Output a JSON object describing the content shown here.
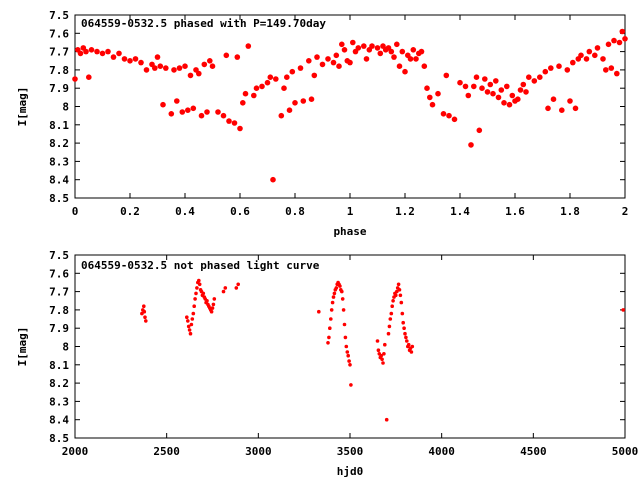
{
  "chart_data": [
    {
      "type": "scatter",
      "title": "064559-0532.5 phased with P=149.70day",
      "xlabel": "phase",
      "ylabel": "I[mag]",
      "xlim": [
        0,
        2
      ],
      "ylim": [
        7.5,
        8.5
      ],
      "y_inverted": true,
      "xticks": [
        "0",
        "0.2",
        "0.4",
        "0.6",
        "0.8",
        "1",
        "1.2",
        "1.4",
        "1.6",
        "1.8",
        "2"
      ],
      "yticks": [
        "7.5",
        "7.6",
        "7.7",
        "7.8",
        "7.9",
        "8",
        "8.1",
        "8.2",
        "8.3",
        "8.4",
        "8.5"
      ],
      "marker_color": "#ff0000",
      "points": [
        [
          0.0,
          7.85
        ],
        [
          0.01,
          7.69
        ],
        [
          0.02,
          7.71
        ],
        [
          0.03,
          7.68
        ],
        [
          0.04,
          7.7
        ],
        [
          0.05,
          7.84
        ],
        [
          0.06,
          7.69
        ],
        [
          0.08,
          7.7
        ],
        [
          0.1,
          7.71
        ],
        [
          0.12,
          7.7
        ],
        [
          0.14,
          7.73
        ],
        [
          0.16,
          7.71
        ],
        [
          0.18,
          7.74
        ],
        [
          0.2,
          7.75
        ],
        [
          0.22,
          7.74
        ],
        [
          0.24,
          7.76
        ],
        [
          0.26,
          7.8
        ],
        [
          0.28,
          7.77
        ],
        [
          0.29,
          7.79
        ],
        [
          0.3,
          7.73
        ],
        [
          0.31,
          7.78
        ],
        [
          0.32,
          7.99
        ],
        [
          0.33,
          7.79
        ],
        [
          0.35,
          8.04
        ],
        [
          0.36,
          7.8
        ],
        [
          0.37,
          7.97
        ],
        [
          0.38,
          7.79
        ],
        [
          0.39,
          8.03
        ],
        [
          0.4,
          7.78
        ],
        [
          0.41,
          8.02
        ],
        [
          0.42,
          7.83
        ],
        [
          0.43,
          8.01
        ],
        [
          0.44,
          7.8
        ],
        [
          0.45,
          7.82
        ],
        [
          0.46,
          8.05
        ],
        [
          0.47,
          7.77
        ],
        [
          0.48,
          8.03
        ],
        [
          0.49,
          7.75
        ],
        [
          0.5,
          7.78
        ],
        [
          0.52,
          8.03
        ],
        [
          0.54,
          8.05
        ],
        [
          0.55,
          7.72
        ],
        [
          0.56,
          8.08
        ],
        [
          0.58,
          8.09
        ],
        [
          0.59,
          7.73
        ],
        [
          0.6,
          8.12
        ],
        [
          0.61,
          7.98
        ],
        [
          0.62,
          7.93
        ],
        [
          0.63,
          7.67
        ],
        [
          0.65,
          7.94
        ],
        [
          0.66,
          7.9
        ],
        [
          0.68,
          7.89
        ],
        [
          0.7,
          7.87
        ],
        [
          0.71,
          7.84
        ],
        [
          0.72,
          8.4
        ],
        [
          0.73,
          7.85
        ],
        [
          0.75,
          8.05
        ],
        [
          0.76,
          7.9
        ],
        [
          0.77,
          7.84
        ],
        [
          0.78,
          8.02
        ],
        [
          0.79,
          7.81
        ],
        [
          0.8,
          7.98
        ],
        [
          0.82,
          7.79
        ],
        [
          0.83,
          7.97
        ],
        [
          0.85,
          7.75
        ],
        [
          0.86,
          7.96
        ],
        [
          0.87,
          7.83
        ],
        [
          0.88,
          7.73
        ],
        [
          0.9,
          7.77
        ],
        [
          0.92,
          7.74
        ],
        [
          0.94,
          7.76
        ],
        [
          0.95,
          7.72
        ],
        [
          0.96,
          7.78
        ],
        [
          0.97,
          7.66
        ],
        [
          0.98,
          7.69
        ],
        [
          0.99,
          7.75
        ],
        [
          1.0,
          7.76
        ],
        [
          1.01,
          7.65
        ],
        [
          1.02,
          7.7
        ],
        [
          1.03,
          7.68
        ],
        [
          1.05,
          7.67
        ],
        [
          1.06,
          7.74
        ],
        [
          1.07,
          7.69
        ],
        [
          1.08,
          7.67
        ],
        [
          1.1,
          7.68
        ],
        [
          1.11,
          7.71
        ],
        [
          1.12,
          7.67
        ],
        [
          1.13,
          7.69
        ],
        [
          1.14,
          7.68
        ],
        [
          1.15,
          7.7
        ],
        [
          1.16,
          7.73
        ],
        [
          1.17,
          7.66
        ],
        [
          1.18,
          7.78
        ],
        [
          1.19,
          7.7
        ],
        [
          1.2,
          7.81
        ],
        [
          1.21,
          7.72
        ],
        [
          1.22,
          7.74
        ],
        [
          1.23,
          7.69
        ],
        [
          1.24,
          7.74
        ],
        [
          1.25,
          7.71
        ],
        [
          1.26,
          7.7
        ],
        [
          1.27,
          7.78
        ],
        [
          1.28,
          7.9
        ],
        [
          1.29,
          7.95
        ],
        [
          1.3,
          7.99
        ],
        [
          1.32,
          7.93
        ],
        [
          1.34,
          8.04
        ],
        [
          1.35,
          7.83
        ],
        [
          1.36,
          8.05
        ],
        [
          1.38,
          8.07
        ],
        [
          1.4,
          7.87
        ],
        [
          1.42,
          7.89
        ],
        [
          1.43,
          7.94
        ],
        [
          1.44,
          8.21
        ],
        [
          1.45,
          7.89
        ],
        [
          1.46,
          7.84
        ],
        [
          1.47,
          8.13
        ],
        [
          1.48,
          7.9
        ],
        [
          1.49,
          7.85
        ],
        [
          1.5,
          7.92
        ],
        [
          1.51,
          7.88
        ],
        [
          1.52,
          7.93
        ],
        [
          1.53,
          7.86
        ],
        [
          1.54,
          7.95
        ],
        [
          1.55,
          7.91
        ],
        [
          1.56,
          7.98
        ],
        [
          1.57,
          7.89
        ],
        [
          1.58,
          7.99
        ],
        [
          1.59,
          7.94
        ],
        [
          1.6,
          7.97
        ],
        [
          1.61,
          7.96
        ],
        [
          1.62,
          7.91
        ],
        [
          1.63,
          7.88
        ],
        [
          1.64,
          7.92
        ],
        [
          1.65,
          7.84
        ],
        [
          1.67,
          7.86
        ],
        [
          1.69,
          7.84
        ],
        [
          1.71,
          7.81
        ],
        [
          1.72,
          8.01
        ],
        [
          1.73,
          7.79
        ],
        [
          1.74,
          7.96
        ],
        [
          1.76,
          7.78
        ],
        [
          1.77,
          8.02
        ],
        [
          1.79,
          7.8
        ],
        [
          1.8,
          7.97
        ],
        [
          1.81,
          7.76
        ],
        [
          1.82,
          8.01
        ],
        [
          1.83,
          7.74
        ],
        [
          1.84,
          7.72
        ],
        [
          1.86,
          7.74
        ],
        [
          1.87,
          7.7
        ],
        [
          1.89,
          7.72
        ],
        [
          1.9,
          7.68
        ],
        [
          1.92,
          7.74
        ],
        [
          1.93,
          7.8
        ],
        [
          1.94,
          7.66
        ],
        [
          1.95,
          7.79
        ],
        [
          1.96,
          7.64
        ],
        [
          1.97,
          7.82
        ],
        [
          1.98,
          7.65
        ],
        [
          1.99,
          7.59
        ],
        [
          2.0,
          7.63
        ]
      ]
    },
    {
      "type": "scatter",
      "title": "064559-0532.5 not phased light curve",
      "xlabel": "hjd0",
      "ylabel": "I[mag]",
      "xlim": [
        2000,
        5000
      ],
      "ylim": [
        7.5,
        8.5
      ],
      "y_inverted": true,
      "xticks": [
        "2000",
        "2500",
        "3000",
        "3500",
        "4000",
        "4500",
        "5000"
      ],
      "yticks": [
        "7.5",
        "7.6",
        "7.7",
        "7.8",
        "7.9",
        "8",
        "8.1",
        "8.2",
        "8.3",
        "8.4",
        "8.5"
      ],
      "marker_color": "#ff0000",
      "points": [
        [
          2365,
          7.82
        ],
        [
          2370,
          7.8
        ],
        [
          2375,
          7.78
        ],
        [
          2378,
          7.81
        ],
        [
          2382,
          7.84
        ],
        [
          2386,
          7.86
        ],
        [
          2610,
          7.84
        ],
        [
          2615,
          7.86
        ],
        [
          2620,
          7.89
        ],
        [
          2625,
          7.91
        ],
        [
          2630,
          7.93
        ],
        [
          2635,
          7.88
        ],
        [
          2640,
          7.85
        ],
        [
          2645,
          7.82
        ],
        [
          2650,
          7.78
        ],
        [
          2655,
          7.74
        ],
        [
          2660,
          7.71
        ],
        [
          2665,
          7.68
        ],
        [
          2670,
          7.65
        ],
        [
          2675,
          7.64
        ],
        [
          2680,
          7.66
        ],
        [
          2685,
          7.69
        ],
        [
          2690,
          7.7
        ],
        [
          2695,
          7.72
        ],
        [
          2700,
          7.71
        ],
        [
          2705,
          7.73
        ],
        [
          2710,
          7.74
        ],
        [
          2715,
          7.76
        ],
        [
          2720,
          7.75
        ],
        [
          2725,
          7.77
        ],
        [
          2730,
          7.78
        ],
        [
          2735,
          7.79
        ],
        [
          2740,
          7.8
        ],
        [
          2745,
          7.81
        ],
        [
          2750,
          7.79
        ],
        [
          2755,
          7.77
        ],
        [
          2760,
          7.74
        ],
        [
          2810,
          7.7
        ],
        [
          2820,
          7.68
        ],
        [
          2880,
          7.68
        ],
        [
          2890,
          7.66
        ],
        [
          3330,
          7.81
        ],
        [
          3380,
          7.98
        ],
        [
          3385,
          7.95
        ],
        [
          3390,
          7.9
        ],
        [
          3395,
          7.85
        ],
        [
          3400,
          7.8
        ],
        [
          3405,
          7.76
        ],
        [
          3410,
          7.73
        ],
        [
          3415,
          7.71
        ],
        [
          3420,
          7.69
        ],
        [
          3425,
          7.68
        ],
        [
          3430,
          7.66
        ],
        [
          3435,
          7.65
        ],
        [
          3440,
          7.66
        ],
        [
          3445,
          7.67
        ],
        [
          3450,
          7.69
        ],
        [
          3455,
          7.7
        ],
        [
          3460,
          7.74
        ],
        [
          3465,
          7.8
        ],
        [
          3470,
          7.88
        ],
        [
          3475,
          7.95
        ],
        [
          3480,
          8.0
        ],
        [
          3485,
          8.03
        ],
        [
          3490,
          8.05
        ],
        [
          3495,
          8.08
        ],
        [
          3500,
          8.1
        ],
        [
          3505,
          8.21
        ],
        [
          3650,
          7.97
        ],
        [
          3655,
          8.02
        ],
        [
          3660,
          8.04
        ],
        [
          3665,
          8.06
        ],
        [
          3670,
          8.05
        ],
        [
          3675,
          8.07
        ],
        [
          3680,
          8.09
        ],
        [
          3685,
          8.04
        ],
        [
          3690,
          7.99
        ],
        [
          3700,
          8.4
        ],
        [
          3710,
          7.93
        ],
        [
          3715,
          7.89
        ],
        [
          3720,
          7.85
        ],
        [
          3725,
          7.82
        ],
        [
          3730,
          7.78
        ],
        [
          3735,
          7.75
        ],
        [
          3740,
          7.73
        ],
        [
          3745,
          7.71
        ],
        [
          3750,
          7.72
        ],
        [
          3755,
          7.7
        ],
        [
          3760,
          7.68
        ],
        [
          3765,
          7.66
        ],
        [
          3770,
          7.69
        ],
        [
          3775,
          7.72
        ],
        [
          3780,
          7.76
        ],
        [
          3785,
          7.82
        ],
        [
          3790,
          7.87
        ],
        [
          3795,
          7.9
        ],
        [
          3800,
          7.93
        ],
        [
          3805,
          7.95
        ],
        [
          3810,
          7.97
        ],
        [
          3815,
          8.0
        ],
        [
          3820,
          7.99
        ],
        [
          3825,
          8.02
        ],
        [
          3830,
          8.01
        ],
        [
          3835,
          8.03
        ],
        [
          3840,
          8.0
        ],
        [
          4990,
          7.8
        ]
      ]
    }
  ]
}
